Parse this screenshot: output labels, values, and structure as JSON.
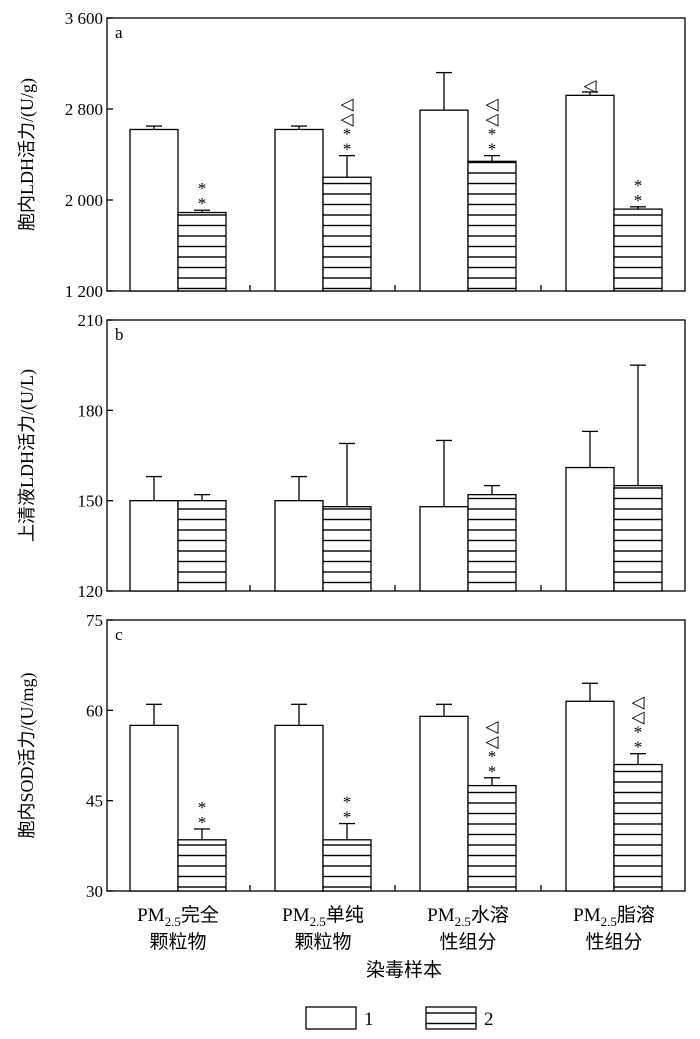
{
  "chart_data": {
    "type": "bar",
    "xlabel": "染毒样本",
    "categories": [
      {
        "prefix": "PM",
        "sub": "2.5",
        "line1": "完全",
        "line2": "颗粒物"
      },
      {
        "prefix": "PM",
        "sub": "2.5",
        "line1": "单纯",
        "line2": "颗粒物"
      },
      {
        "prefix": "PM",
        "sub": "2.5",
        "line1": "水溶",
        "line2": "性组分"
      },
      {
        "prefix": "PM",
        "sub": "2.5",
        "line1": "脂溶",
        "line2": "性组分"
      }
    ],
    "legend": {
      "placement": "bottom-center",
      "entries": [
        {
          "name": "1",
          "fill": "plain"
        },
        {
          "name": "2",
          "fill": "horizontal-stripes"
        }
      ]
    },
    "panels": [
      {
        "label": "a",
        "ylabel": "胞内LDH活力/(U/g)",
        "ylim": [
          1200,
          3600
        ],
        "yticks": [
          1200,
          2000,
          2800,
          3600
        ],
        "ytick_labels": [
          "1 200",
          "2 000",
          "2 800",
          "3 600"
        ],
        "series": [
          {
            "name": "1",
            "values": [
              2620,
              2620,
              2790,
              2920
            ],
            "errors": [
              30,
              30,
              330,
              30
            ]
          },
          {
            "name": "2",
            "values": [
              1890,
              2200,
              2340,
              1920
            ],
            "errors": [
              20,
              190,
              50,
              20
            ]
          }
        ],
        "annotations": [
          {
            "category": 0,
            "series": 1,
            "text": [
              "*",
              "*"
            ]
          },
          {
            "category": 1,
            "series": 1,
            "text": [
              "*",
              "*",
              "◁",
              "◁"
            ]
          },
          {
            "category": 2,
            "series": 1,
            "text": [
              "*",
              "*",
              "◁",
              "◁"
            ]
          },
          {
            "category": 3,
            "series": 0,
            "text": [
              "◁"
            ]
          },
          {
            "category": 3,
            "series": 1,
            "text": [
              "*",
              "*"
            ]
          }
        ]
      },
      {
        "label": "b",
        "ylabel": "上清液LDH活力/(U/L)",
        "ylim": [
          120,
          210
        ],
        "yticks": [
          120,
          150,
          180,
          210
        ],
        "ytick_labels": [
          "120",
          "150",
          "180",
          "210"
        ],
        "series": [
          {
            "name": "1",
            "values": [
              150,
              150,
              148,
              161
            ],
            "errors": [
              8,
              8,
              22,
              12
            ]
          },
          {
            "name": "2",
            "values": [
              150,
              148,
              152,
              155
            ],
            "errors": [
              2,
              21,
              3,
              40
            ]
          }
        ],
        "annotations": []
      },
      {
        "label": "c",
        "ylabel": "胞内SOD活力/(U/mg)",
        "ylim": [
          30,
          75
        ],
        "yticks": [
          30,
          45,
          60,
          75
        ],
        "ytick_labels": [
          "30",
          "45",
          "60",
          "75"
        ],
        "series": [
          {
            "name": "1",
            "values": [
              57.5,
              57.5,
              59,
              61.5
            ],
            "errors": [
              3.5,
              3.5,
              2,
              3
            ]
          },
          {
            "name": "2",
            "values": [
              38.5,
              38.5,
              47.5,
              51
            ],
            "errors": [
              1.8,
              2.7,
              1.3,
              1.8
            ]
          }
        ],
        "annotations": [
          {
            "category": 0,
            "series": 1,
            "text": [
              "*",
              "*"
            ]
          },
          {
            "category": 1,
            "series": 1,
            "text": [
              "*",
              "*"
            ]
          },
          {
            "category": 2,
            "series": 1,
            "text": [
              "*",
              "*",
              "◁",
              "◁"
            ]
          },
          {
            "category": 3,
            "series": 1,
            "text": [
              "*",
              "*",
              "◁",
              "◁"
            ]
          }
        ]
      }
    ]
  }
}
